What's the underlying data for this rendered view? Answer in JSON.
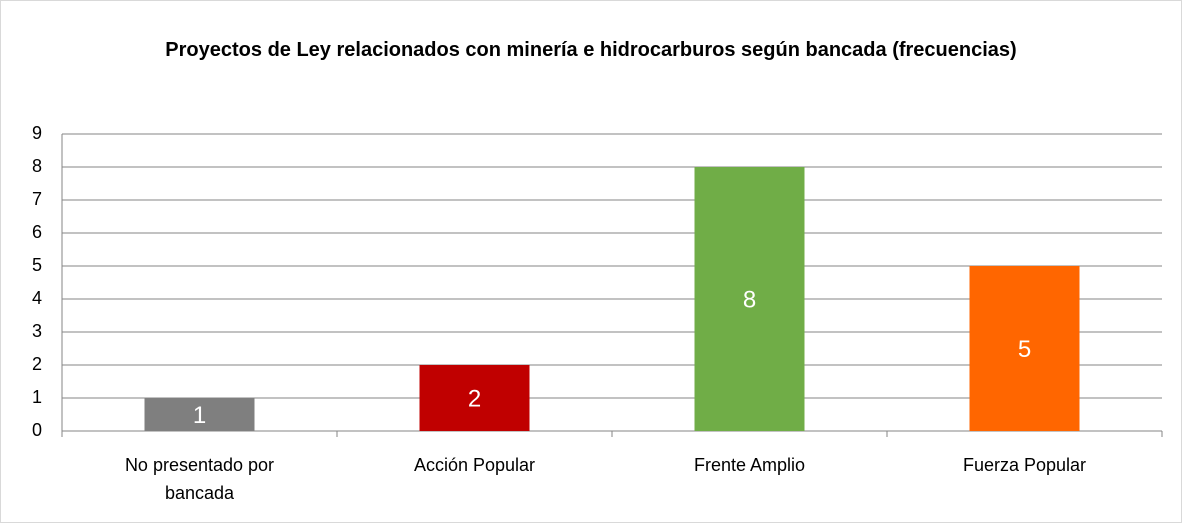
{
  "chart_data": {
    "type": "bar",
    "title": "Proyectos de Ley relacionados con minería e hidrocarburos según bancada (frecuencias)",
    "categories": [
      "No presentado por bancada",
      "Acción Popular",
      "Frente Amplio",
      "Fuerza Popular"
    ],
    "values": [
      1,
      2,
      8,
      5
    ],
    "colors": [
      "#7f7f7f",
      "#c00000",
      "#70ad47",
      "#ff6600"
    ],
    "ylim": [
      0,
      9
    ],
    "yticks": [
      0,
      1,
      2,
      3,
      4,
      5,
      6,
      7,
      8,
      9
    ],
    "grid": true
  }
}
